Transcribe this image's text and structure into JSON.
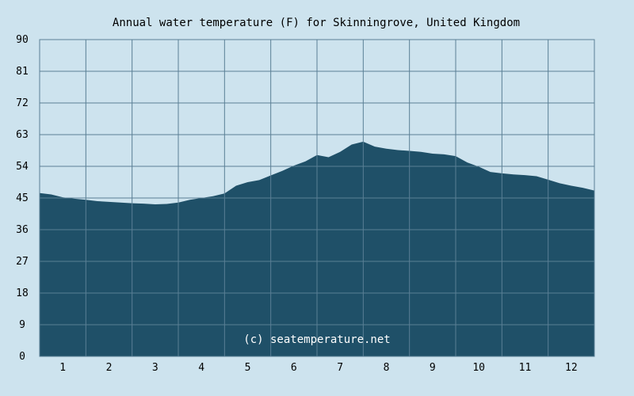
{
  "chart_data": {
    "type": "area",
    "title": "Annual water temperature (F) for Skinningrove, United Kingdom",
    "watermark": "(c) seatemperature.net",
    "xlabel": "",
    "ylabel": "",
    "x_ticks": [
      "1",
      "2",
      "3",
      "4",
      "5",
      "6",
      "7",
      "8",
      "9",
      "10",
      "11",
      "12"
    ],
    "y_ticks": [
      "0",
      "9",
      "18",
      "27",
      "36",
      "45",
      "54",
      "63",
      "72",
      "81",
      "90"
    ],
    "xlim": [
      0.5,
      12.5
    ],
    "ylim": [
      0,
      90
    ],
    "grid": true,
    "colors": {
      "area": "#1f5068",
      "background": "#cde3ee",
      "grid": "#5a7f95"
    },
    "series": [
      {
        "x": [
          0.5,
          0.75,
          1.0,
          1.25,
          1.5,
          1.75,
          2.0,
          2.25,
          2.5,
          2.75,
          3.0,
          3.25,
          3.5,
          3.75,
          4.0,
          4.25,
          4.5,
          4.75,
          5.0,
          5.25,
          5.5,
          5.75,
          6.0,
          6.25,
          6.5,
          6.75,
          7.0,
          7.25,
          7.5,
          7.75,
          8.0,
          8.25,
          8.5,
          8.75,
          9.0,
          9.25,
          9.5,
          9.75,
          10.0,
          10.25,
          10.5,
          10.75,
          11.0,
          11.25,
          11.5,
          11.75,
          12.0,
          12.25,
          12.5
        ],
        "values": [
          46.4,
          46.0,
          45.2,
          44.8,
          44.5,
          44.1,
          43.9,
          43.7,
          43.5,
          43.4,
          43.2,
          43.3,
          43.7,
          44.5,
          45.0,
          45.5,
          46.3,
          48.5,
          49.5,
          50.1,
          51.4,
          52.7,
          54.2,
          55.4,
          57.2,
          56.6,
          58.1,
          60.2,
          61.0,
          59.6,
          59.0,
          58.6,
          58.4,
          58.1,
          57.6,
          57.4,
          56.9,
          55.1,
          53.9,
          52.4,
          52.0,
          51.7,
          51.5,
          51.2,
          50.2,
          49.2,
          48.5,
          47.9,
          47.1
        ]
      }
    ]
  }
}
